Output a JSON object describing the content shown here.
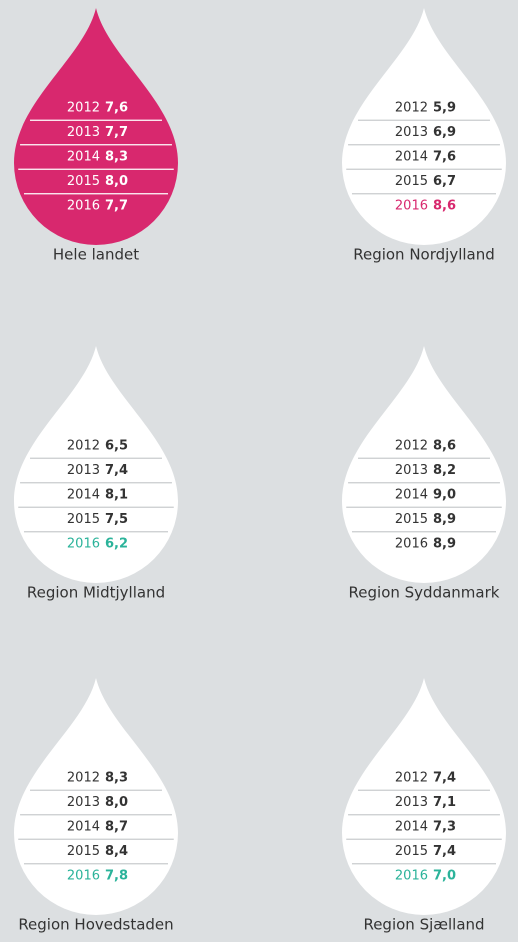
{
  "regions": [
    {
      "name": "Hele landet",
      "fill": "#d8286e",
      "text_color": "#ffffff",
      "rows": [
        {
          "year": "2012",
          "value": "7,6"
        },
        {
          "year": "2013",
          "value": "7,7"
        },
        {
          "year": "2014",
          "value": "8,3"
        },
        {
          "year": "2015",
          "value": "8,0"
        },
        {
          "year": "2016",
          "value": "7,7"
        }
      ]
    },
    {
      "name": "Region Nordjylland",
      "fill": "#ffffff",
      "text_color": "#333333",
      "rows": [
        {
          "year": "2012",
          "value": "5,9"
        },
        {
          "year": "2013",
          "value": "6,9"
        },
        {
          "year": "2014",
          "value": "7,6"
        },
        {
          "year": "2015",
          "value": "6,7"
        },
        {
          "year": "2016",
          "value": "8,6",
          "color": "#d8286e"
        }
      ]
    },
    {
      "name": "Region Midtjylland",
      "fill": "#ffffff",
      "text_color": "#333333",
      "rows": [
        {
          "year": "2012",
          "value": "6,5"
        },
        {
          "year": "2013",
          "value": "7,4"
        },
        {
          "year": "2014",
          "value": "8,1"
        },
        {
          "year": "2015",
          "value": "7,5"
        },
        {
          "year": "2016",
          "value": "6,2",
          "color": "#2bb39a"
        }
      ]
    },
    {
      "name": "Region Syddanmark",
      "fill": "#ffffff",
      "text_color": "#333333",
      "rows": [
        {
          "year": "2012",
          "value": "8,6"
        },
        {
          "year": "2013",
          "value": "8,2"
        },
        {
          "year": "2014",
          "value": "9,0"
        },
        {
          "year": "2015",
          "value": "8,9"
        },
        {
          "year": "2016",
          "value": "8,9"
        }
      ]
    },
    {
      "name": "Region Hovedstaden",
      "fill": "#ffffff",
      "text_color": "#333333",
      "rows": [
        {
          "year": "2012",
          "value": "8,3"
        },
        {
          "year": "2013",
          "value": "8,0"
        },
        {
          "year": "2014",
          "value": "8,7"
        },
        {
          "year": "2015",
          "value": "8,4"
        },
        {
          "year": "2016",
          "value": "7,8",
          "color": "#2bb39a"
        }
      ]
    },
    {
      "name": "Region Sjælland",
      "fill": "#ffffff",
      "text_color": "#333333",
      "rows": [
        {
          "year": "2012",
          "value": "7,4"
        },
        {
          "year": "2013",
          "value": "7,1"
        },
        {
          "year": "2014",
          "value": "7,3"
        },
        {
          "year": "2015",
          "value": "7,4"
        },
        {
          "year": "2016",
          "value": "7,0",
          "color": "#2bb39a"
        }
      ]
    }
  ]
}
